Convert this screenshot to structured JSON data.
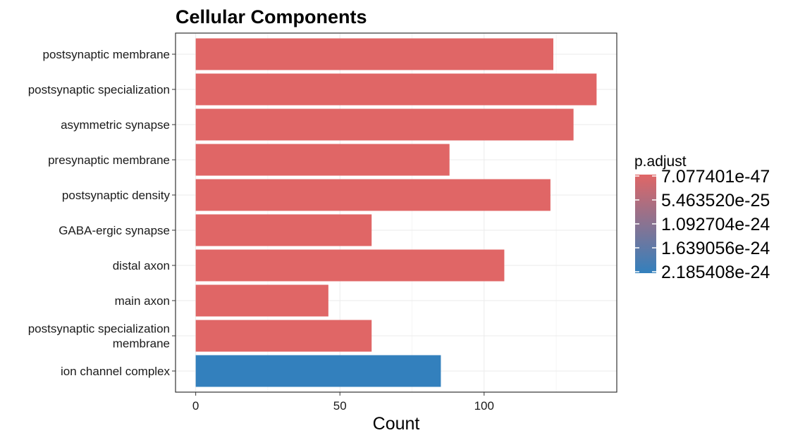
{
  "chart_data": {
    "type": "bar",
    "orientation": "horizontal",
    "title": "Cellular Components",
    "xlabel": "Count",
    "ylabel": "",
    "xlim": [
      -7,
      146
    ],
    "x_ticks": [
      0,
      50,
      100
    ],
    "grid": true,
    "categories": [
      [
        "postsynaptic membrane"
      ],
      [
        "postsynaptic specialization"
      ],
      [
        "asymmetric synapse"
      ],
      [
        "presynaptic membrane"
      ],
      [
        "postsynaptic density"
      ],
      [
        "GABA-ergic synapse"
      ],
      [
        "distal axon"
      ],
      [
        "main axon"
      ],
      [
        "postsynaptic specialization",
        "membrane"
      ],
      [
        "ion channel complex"
      ]
    ],
    "values": [
      124,
      139,
      131,
      88,
      123,
      61,
      107,
      46,
      61,
      85
    ],
    "bar_colors": [
      "#E06666",
      "#E06666",
      "#E06666",
      "#E06666",
      "#E06666",
      "#E06666",
      "#E06666",
      "#E06666",
      "#E06666",
      "#3380BD"
    ],
    "legend": {
      "title": "p.adjust",
      "position": "right",
      "labels": [
        "7.077401e-47",
        "5.463520e-25",
        "1.092704e-24",
        "1.639056e-24",
        "2.185408e-24"
      ],
      "color_low": "#E06666",
      "color_high": "#3380BD"
    }
  }
}
